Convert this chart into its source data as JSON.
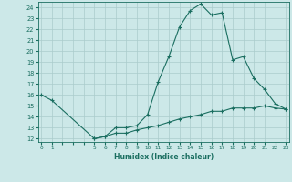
{
  "xlabel": "Humidex (Indice chaleur)",
  "background_color": "#cce8e8",
  "grid_color": "#aacccc",
  "line_color": "#1a6e60",
  "x_upper": [
    0,
    1,
    5,
    6,
    7,
    8,
    9,
    10,
    11,
    12,
    13,
    14,
    15,
    16,
    17,
    18,
    19,
    20,
    21,
    22,
    23
  ],
  "y_upper": [
    16.0,
    15.5,
    12.0,
    12.2,
    13.0,
    13.0,
    13.2,
    14.2,
    17.2,
    19.5,
    22.2,
    23.7,
    24.3,
    23.3,
    23.5,
    19.2,
    19.5,
    17.5,
    16.5,
    15.2,
    14.7
  ],
  "x_lower": [
    5,
    6,
    7,
    8,
    9,
    10,
    11,
    12,
    13,
    14,
    15,
    16,
    17,
    18,
    19,
    20,
    21,
    22,
    23
  ],
  "y_lower": [
    12.0,
    12.2,
    12.5,
    12.5,
    12.8,
    13.0,
    13.2,
    13.5,
    13.8,
    14.0,
    14.2,
    14.5,
    14.5,
    14.8,
    14.8,
    14.8,
    15.0,
    14.8,
    14.7
  ],
  "ylim": [
    12,
    24
  ],
  "xlim": [
    0,
    23
  ],
  "yticks": [
    12,
    13,
    14,
    15,
    16,
    17,
    18,
    19,
    20,
    21,
    22,
    23,
    24
  ],
  "xticks": [
    0,
    1,
    2,
    3,
    4,
    5,
    6,
    7,
    8,
    9,
    10,
    11,
    12,
    13,
    14,
    15,
    16,
    17,
    18,
    19,
    20,
    21,
    22,
    23
  ],
  "xtick_labels": [
    "0",
    "1",
    "",
    "",
    "",
    "5",
    "6",
    "7",
    "8",
    "9",
    "10",
    "11",
    "12",
    "13",
    "14",
    "15",
    "16",
    "17",
    "18",
    "19",
    "20",
    "21",
    "22",
    "23"
  ]
}
